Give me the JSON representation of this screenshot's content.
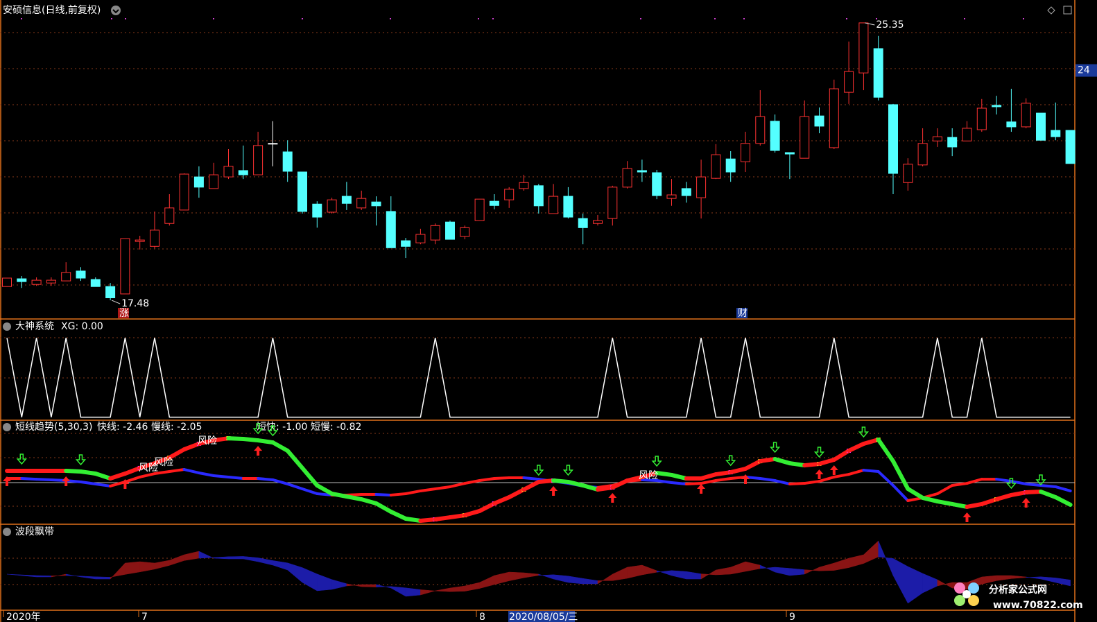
{
  "chart_data": [
    {
      "type": "candlestick",
      "title": "安硕信息(日线,前复权)",
      "up_color": "#ff3232",
      "down_color": "#54ffff",
      "flat_color": "#ffffff",
      "ylim": [
        16.95,
        25.9
      ],
      "yticks": [
        24
      ],
      "open": [
        17.87,
        18.09,
        17.93,
        17.97,
        18.03,
        18.31,
        18.07,
        17.87,
        17.66,
        19.15,
        19.01,
        19.66,
        20.04,
        20.98,
        20.65,
        20.98,
        21.16,
        21.04,
        21.93,
        21.69,
        21.12,
        20.21,
        19.98,
        20.43,
        20.1,
        20.27,
        20.0,
        19.17,
        19.11,
        19.19,
        19.7,
        19.29,
        19.74,
        20.29,
        20.33,
        20.65,
        20.73,
        19.94,
        20.43,
        19.8,
        19.66,
        19.8,
        20.69,
        21.16,
        21.1,
        20.37,
        20.65,
        20.39,
        20.94,
        21.49,
        21.41,
        21.93,
        22.56,
        21.67,
        21.51,
        22.71,
        21.81,
        23.38,
        23.93,
        24.62,
        23.03,
        20.82,
        21.32,
        22.0,
        22.1,
        22.0,
        22.32,
        23.01,
        22.54,
        22.4,
        22.79,
        22.3,
        22.3
      ],
      "close": [
        18.11,
        18.01,
        18.05,
        18.05,
        18.27,
        18.11,
        17.87,
        17.55,
        19.23,
        19.19,
        19.47,
        20.1,
        21.06,
        20.69,
        21.04,
        21.28,
        21.04,
        21.87,
        21.93,
        21.14,
        20.0,
        19.84,
        20.33,
        20.23,
        20.37,
        20.16,
        18.97,
        19.01,
        19.35,
        19.6,
        19.21,
        19.54,
        20.35,
        20.17,
        20.63,
        20.82,
        20.16,
        20.43,
        19.84,
        19.54,
        19.74,
        20.69,
        21.22,
        21.12,
        20.45,
        20.47,
        20.45,
        20.98,
        21.61,
        21.12,
        21.93,
        22.69,
        21.73,
        21.63,
        22.69,
        22.42,
        23.48,
        23.97,
        25.35,
        23.24,
        21.08,
        21.34,
        21.93,
        22.12,
        21.83,
        22.36,
        22.93,
        22.97,
        22.4,
        23.07,
        22.02,
        22.12,
        21.36
      ],
      "high": [
        18.11,
        18.17,
        18.13,
        18.13,
        18.56,
        18.42,
        18.13,
        17.97,
        19.23,
        19.31,
        20.0,
        20.49,
        21.08,
        21.28,
        21.38,
        21.77,
        21.87,
        22.26,
        22.56,
        22.02,
        21.12,
        20.29,
        20.39,
        20.84,
        20.59,
        20.43,
        20.43,
        19.25,
        19.51,
        19.66,
        19.74,
        19.6,
        20.35,
        20.49,
        20.69,
        21.04,
        20.78,
        20.78,
        20.69,
        19.94,
        19.9,
        20.73,
        21.43,
        21.47,
        21.18,
        20.92,
        20.84,
        21.47,
        21.91,
        21.71,
        22.26,
        23.44,
        22.75,
        21.67,
        23.15,
        22.95,
        23.74,
        24.82,
        25.35,
        24.98,
        23.05,
        21.51,
        22.36,
        22.36,
        22.36,
        22.56,
        23.19,
        23.28,
        23.48,
        23.21,
        22.79,
        23.09,
        22.3
      ],
      "low": [
        17.87,
        17.83,
        17.89,
        17.89,
        18.03,
        18.03,
        17.87,
        17.48,
        17.66,
        18.92,
        18.95,
        19.6,
        20.04,
        20.39,
        20.65,
        20.92,
        20.92,
        21.04,
        21.28,
        20.84,
        19.94,
        19.54,
        19.94,
        20.04,
        20.04,
        19.6,
        18.97,
        18.68,
        19.07,
        19.07,
        19.21,
        19.21,
        19.74,
        20.06,
        20.1,
        20.59,
        19.94,
        19.94,
        19.8,
        19.07,
        19.6,
        19.6,
        20.65,
        20.84,
        20.35,
        20.16,
        20.25,
        19.8,
        20.92,
        20.84,
        21.12,
        21.87,
        21.67,
        20.92,
        21.51,
        22.22,
        21.77,
        23.05,
        23.44,
        23.15,
        20.49,
        20.59,
        21.28,
        21.83,
        21.57,
        22.0,
        22.26,
        22.75,
        22.26,
        22.36,
        22.02,
        22.02,
        21.36
      ],
      "annotations": [
        "25.35",
        "17.48",
        "涨",
        "财"
      ]
    },
    {
      "type": "line",
      "title": "大神系统",
      "legend": "XG: 0.00",
      "ylim": [
        -0.03,
        1.23
      ],
      "series": [
        {
          "color": "#ffffff",
          "values": [
            1,
            0,
            1,
            0,
            1,
            0,
            0,
            0,
            1,
            0,
            1,
            0,
            0,
            0,
            0,
            0,
            0,
            0,
            1,
            0,
            0,
            0,
            0,
            0,
            0,
            0,
            0,
            0,
            0,
            1,
            0,
            0,
            0,
            0,
            0,
            0,
            0,
            0,
            0,
            0,
            0,
            1,
            0,
            0,
            0,
            0,
            0,
            1,
            0,
            0,
            1,
            0,
            0,
            0,
            0,
            0,
            1,
            0,
            0,
            0,
            0,
            0,
            0,
            1,
            0,
            0,
            1,
            0,
            0,
            0,
            0,
            0,
            0
          ]
        }
      ]
    },
    {
      "type": "ribbon",
      "title": "短线趋势(5,30,3)",
      "readouts": [
        "快线: -2.46",
        "慢线: -2.05",
        "短快: -1.00",
        "短慢: -0.82"
      ],
      "ylim": [
        -4.54,
        6.85
      ],
      "series": [
        {
          "up_color": "#ff1a1a",
          "down_color": "#33ee33",
          "values": [
            1.31,
            1.31,
            1.31,
            1.31,
            1.31,
            1.23,
            1.0,
            0.46,
            1.0,
            1.62,
            2.15,
            2.77,
            3.69,
            4.31,
            4.69,
            4.92,
            4.85,
            4.69,
            4.46,
            3.54,
            1.62,
            -0.31,
            -1.23,
            -1.54,
            -1.85,
            -2.31,
            -3.23,
            -4.0,
            -4.23,
            -4.08,
            -3.85,
            -3.62,
            -3.15,
            -2.31,
            -1.62,
            -0.77,
            0.08,
            0.23,
            0.08,
            -0.31,
            -0.77,
            -0.54,
            0.23,
            0.62,
            1.08,
            0.85,
            0.46,
            0.46,
            0.92,
            1.15,
            1.54,
            2.38,
            2.62,
            2.15,
            1.92,
            2.08,
            2.54,
            3.54,
            4.31,
            4.77,
            2.38,
            -0.69,
            -1.69,
            -2.08,
            -2.38,
            -2.69,
            -2.38,
            -1.85,
            -1.38,
            -1.08,
            -1.0,
            -1.62,
            -2.46
          ]
        },
        {
          "up_color": "#ff1a1a",
          "down_color": "#2a2aff",
          "values": [
            0.46,
            0.46,
            0.38,
            0.31,
            0.23,
            0.08,
            -0.15,
            -0.38,
            0.08,
            0.62,
            1.0,
            1.23,
            1.46,
            1.08,
            0.77,
            0.62,
            0.46,
            0.46,
            0.31,
            -0.15,
            -0.69,
            -1.23,
            -1.38,
            -1.38,
            -1.31,
            -1.31,
            -1.38,
            -1.23,
            -0.92,
            -0.69,
            -0.46,
            -0.08,
            0.23,
            0.46,
            0.54,
            0.54,
            0.38,
            0.15,
            -0.08,
            -0.38,
            -0.54,
            -0.31,
            0.15,
            0.31,
            0.23,
            0.0,
            -0.15,
            -0.08,
            0.23,
            0.46,
            0.62,
            0.46,
            0.23,
            -0.15,
            -0.08,
            0.15,
            0.62,
            0.92,
            1.38,
            1.23,
            -0.31,
            -2.0,
            -1.69,
            -1.23,
            -0.31,
            -0.08,
            0.38,
            0.38,
            0.15,
            -0.15,
            -0.31,
            -0.46,
            -0.92
          ]
        }
      ],
      "annotations": [
        "风险",
        "风险",
        "风险",
        "风险"
      ]
    },
    {
      "type": "band",
      "title": "波段飘带",
      "ylim": [
        0,
        123
      ],
      "up_color": "#8a1414",
      "down_color": "#1c1ca8",
      "values": [
        52,
        50,
        48,
        48,
        52,
        48,
        45,
        45,
        68,
        70,
        68,
        72,
        80,
        85,
        75,
        74,
        74,
        70,
        65,
        58,
        40,
        28,
        30,
        35,
        37,
        37,
        32,
        20,
        22,
        28,
        32,
        35,
        40,
        50,
        55,
        54,
        52,
        45,
        40,
        38,
        38,
        52,
        62,
        65,
        57,
        50,
        45,
        45,
        58,
        62,
        70,
        65,
        55,
        50,
        52,
        62,
        68,
        75,
        80,
        100,
        50,
        10,
        25,
        35,
        40,
        40,
        48,
        50,
        50,
        48,
        45,
        40,
        35
      ],
      "x_labels": [
        "2020年",
        "7",
        "8",
        "2020/08/05/三",
        "9"
      ]
    }
  ],
  "watermark": {
    "title": "分析家公式网",
    "url": "www.70822.com"
  }
}
